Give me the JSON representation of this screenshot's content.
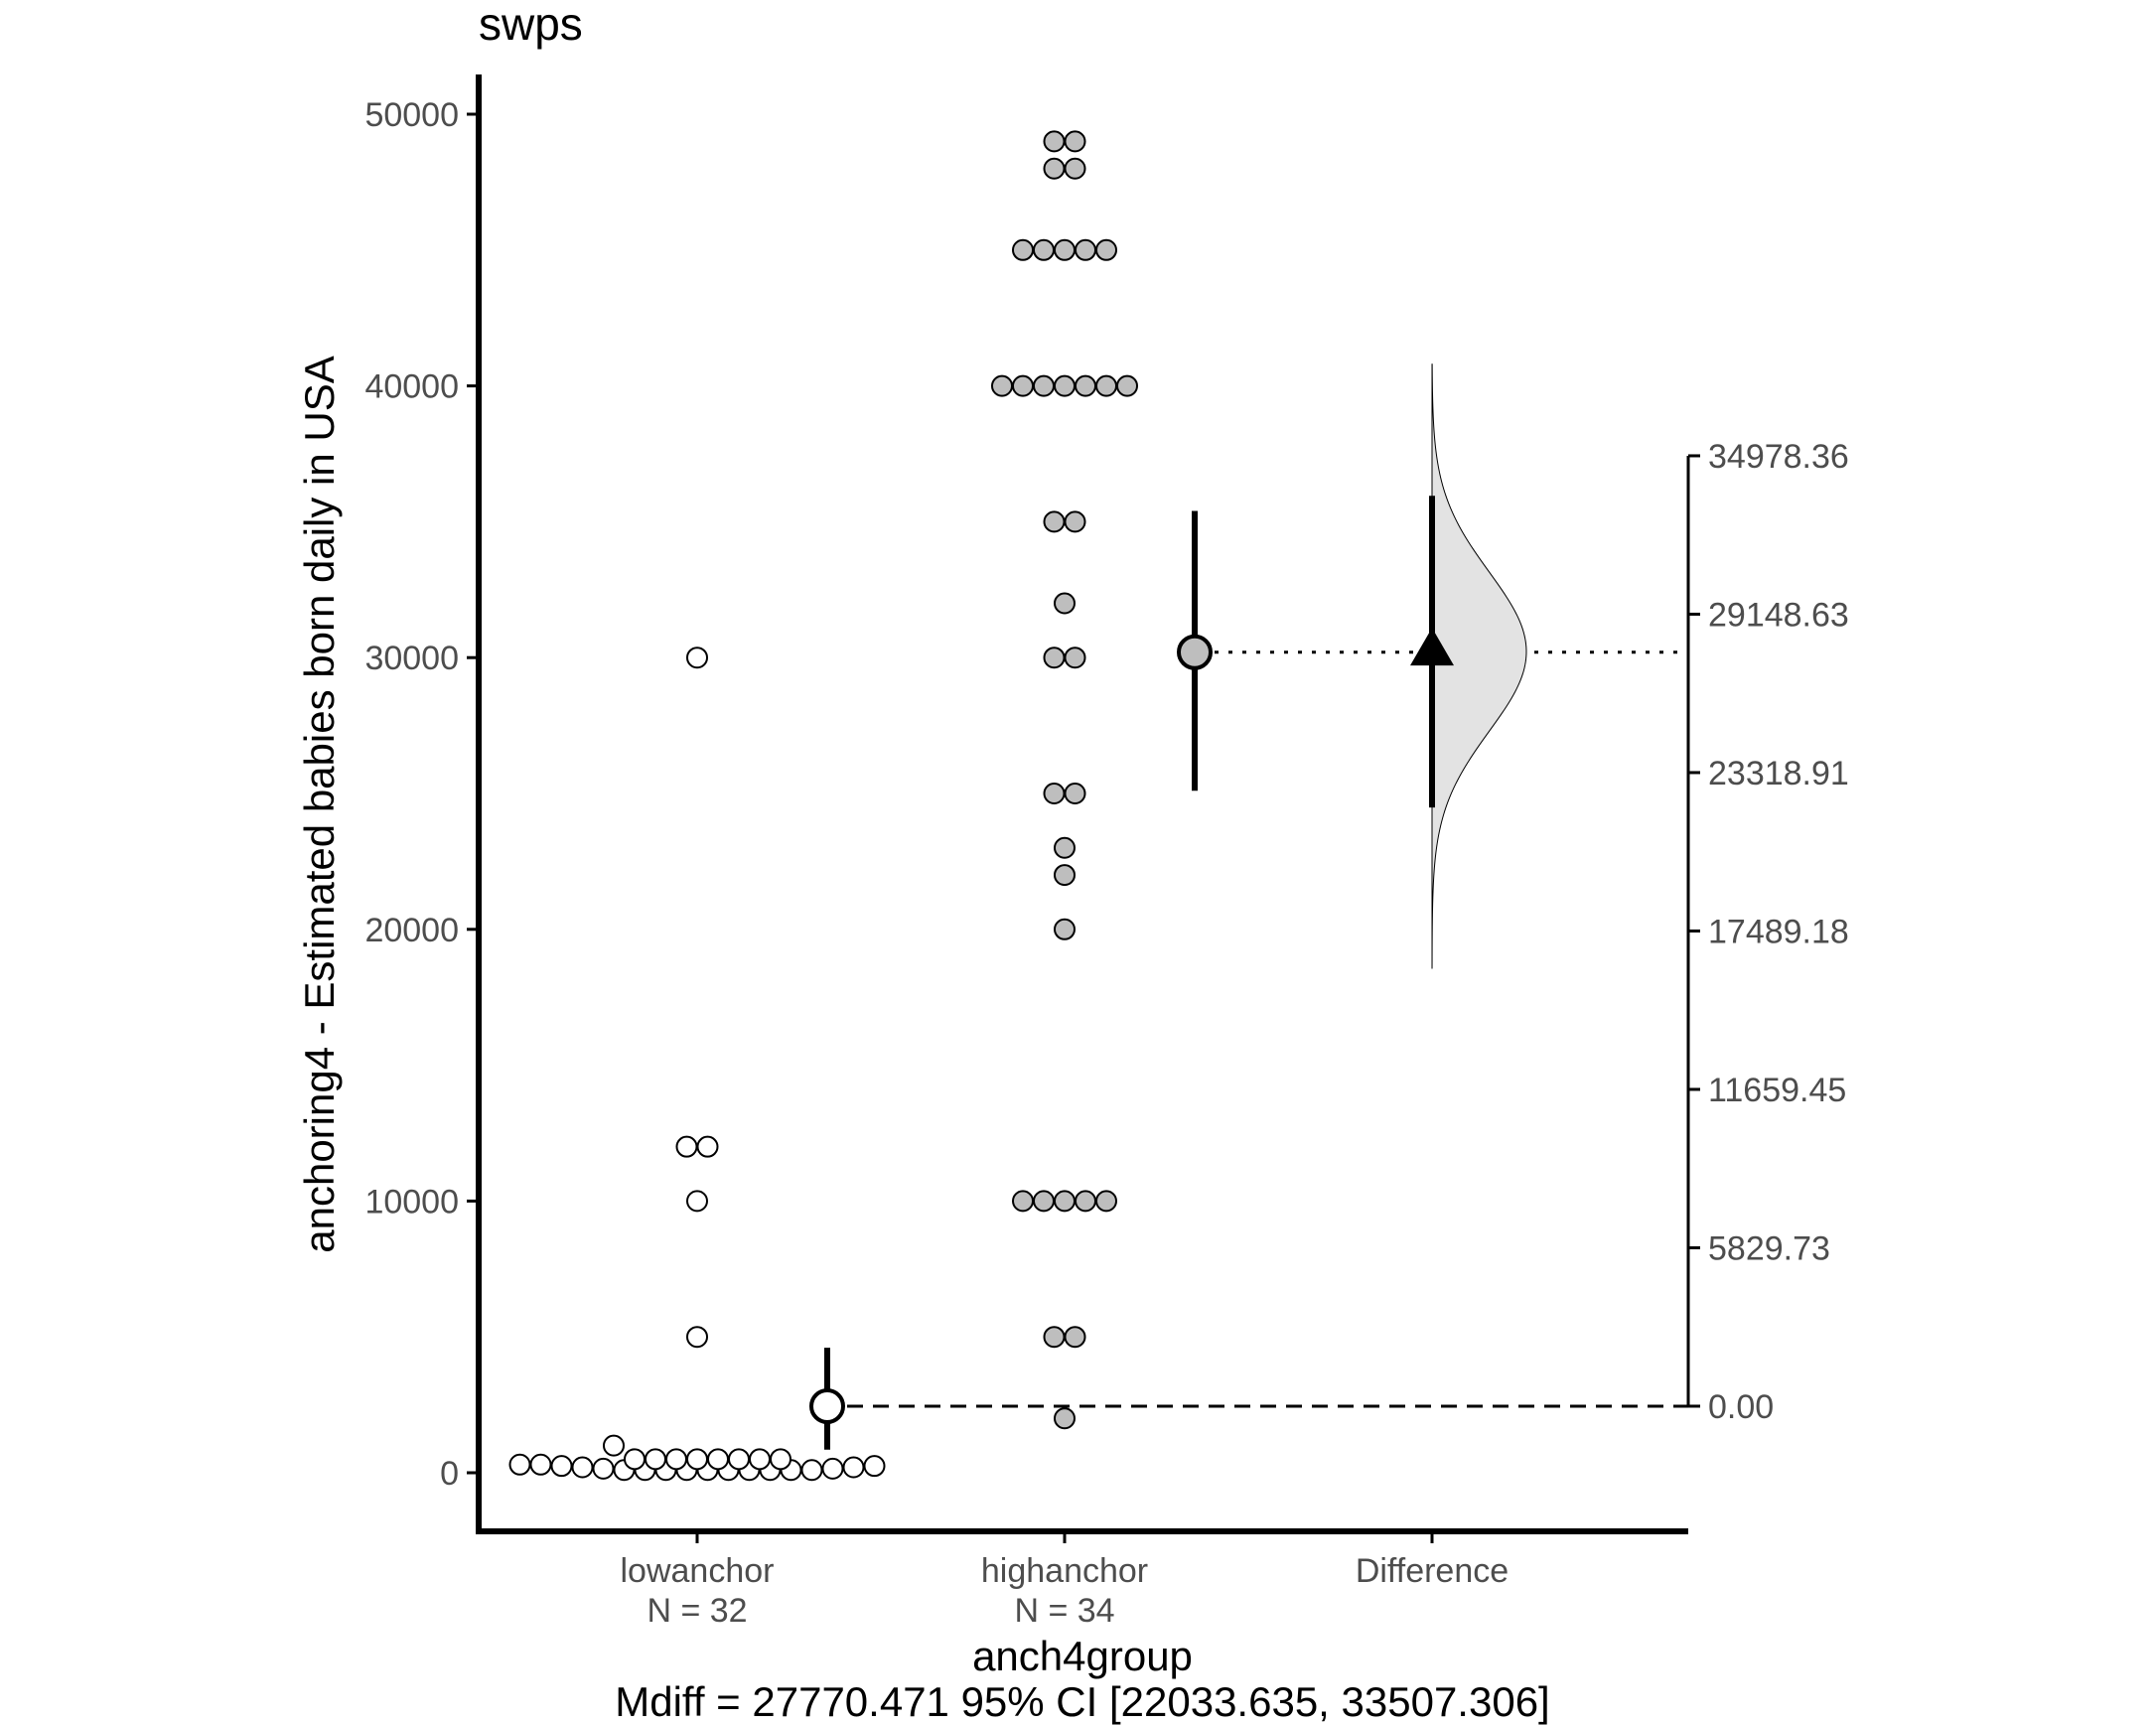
{
  "chart_data": {
    "type": "scatter",
    "title": "swps",
    "xlabel": "anch4group",
    "ylabel": "anchoring4 - Estimated babies born daily in USA",
    "caption": "Mdiff = 27770.471 95% CI [22033.635, 33507.306]",
    "categories": [
      {
        "label": "lowanchor",
        "n_label": "N =  32"
      },
      {
        "label": "highanchor",
        "n_label": "N =  34"
      },
      {
        "label": "Difference",
        "n_label": ""
      }
    ],
    "ylim": [
      -2200,
      51500
    ],
    "y_ticks": [
      0,
      10000,
      20000,
      30000,
      40000,
      50000
    ],
    "y_tick_labels": [
      "0",
      "10000",
      "20000",
      "30000",
      "40000",
      "50000"
    ],
    "diff_axis": {
      "ticks": [
        0,
        5829.73,
        11659.45,
        17489.18,
        23318.91,
        29148.63,
        34978.36
      ],
      "tick_labels": [
        "0.00",
        "5829.73",
        "11659.45",
        "17489.18",
        "23318.91",
        "29148.63",
        "34978.36"
      ],
      "zero_at": 2450
    },
    "series": [
      {
        "name": "lowanchor",
        "color": "#ffffff",
        "values": [
          30000,
          12000,
          12000,
          10000,
          5000,
          1000,
          500,
          500,
          500,
          500,
          500,
          500,
          500,
          500,
          300,
          300,
          250,
          200,
          150,
          100,
          100,
          100,
          100,
          100,
          100,
          100,
          100,
          100,
          100,
          150,
          200,
          250
        ],
        "mean": 2450,
        "ci": [
          850,
          4600
        ]
      },
      {
        "name": "highanchor",
        "color": "#bebebe",
        "values": [
          49000,
          49000,
          48000,
          48000,
          45000,
          45000,
          45000,
          45000,
          40000,
          40000,
          40000,
          40000,
          40000,
          40000,
          35000,
          35000,
          32000,
          30000,
          30000,
          25000,
          25000,
          23000,
          22000,
          20000,
          10000,
          10000,
          10000,
          10000,
          5000,
          5000,
          2000,
          10000,
          40000,
          45000
        ],
        "mean": 30200,
        "ci": [
          25100,
          35400
        ]
      }
    ],
    "difference": {
      "estimate": 27770.471,
      "ci": [
        22033.635,
        33507.306
      ],
      "dist_range": [
        16100,
        38350
      ]
    },
    "colors": {
      "ink": "#000000",
      "tick_text": "#4d4d4d",
      "density_fill": "#e3e3e3"
    }
  }
}
